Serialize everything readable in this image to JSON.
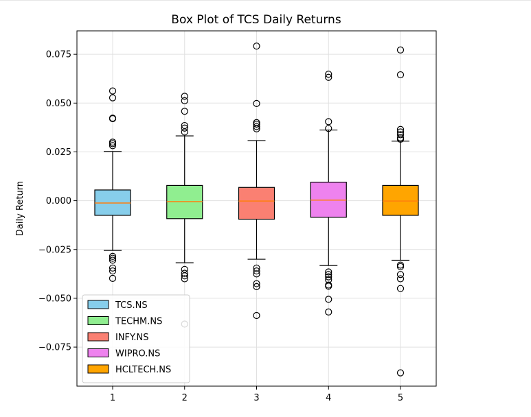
{
  "chart_data": {
    "type": "box",
    "title": "Box Plot of TCS Daily Returns",
    "xlabel": "",
    "ylabel": "Daily Return",
    "categories": [
      "1",
      "2",
      "3",
      "4",
      "5"
    ],
    "ylim": [
      -0.095,
      0.087
    ],
    "yticks": [
      0.075,
      0.05,
      0.025,
      0.0,
      -0.025,
      -0.05,
      -0.075
    ],
    "ytick_labels": [
      "0.075",
      "0.050",
      "0.025",
      "0.000",
      "−0.025",
      "−0.050",
      "−0.075"
    ],
    "grid": true,
    "legend_position": "lower-left",
    "series": [
      {
        "name": "TCS.NS",
        "color": "#87ceeb",
        "whisker_low": -0.0255,
        "q1": -0.0075,
        "median": -0.0012,
        "q3": 0.0055,
        "whisker_high": 0.0252,
        "outliers": [
          0.0562,
          0.0527,
          0.0423,
          0.042,
          0.03,
          0.0292,
          0.0282,
          -0.0285,
          -0.0295,
          -0.0305,
          -0.0345,
          -0.036,
          -0.0398
        ]
      },
      {
        "name": "TECHM.NS",
        "color": "#90ee90",
        "whisker_low": -0.0318,
        "q1": -0.0092,
        "median": -0.0005,
        "q3": 0.0078,
        "whisker_high": 0.0332,
        "outliers": [
          0.0535,
          0.0512,
          0.0458,
          0.0385,
          0.0372,
          0.0352,
          -0.0352,
          -0.0372,
          -0.0385,
          -0.04,
          -0.0632
        ]
      },
      {
        "name": "INFY.NS",
        "color": "#fa8072",
        "whisker_low": -0.03,
        "q1": -0.0095,
        "median": -0.0002,
        "q3": 0.0068,
        "whisker_high": 0.0308,
        "outliers": [
          0.0792,
          0.0498,
          0.04,
          0.0392,
          0.038,
          0.0368,
          -0.0345,
          -0.036,
          -0.0375,
          -0.0425,
          -0.044,
          -0.0588
        ]
      },
      {
        "name": "WIPRO.NS",
        "color": "#ee82ee",
        "whisker_low": -0.0332,
        "q1": -0.0085,
        "median": 0.0003,
        "q3": 0.0095,
        "whisker_high": 0.0362,
        "outliers": [
          0.0648,
          0.0632,
          0.0405,
          0.037,
          -0.0365,
          -0.0378,
          -0.039,
          -0.0405,
          -0.0432,
          -0.0438,
          -0.0505,
          -0.057
        ]
      },
      {
        "name": "HCLTECH.NS",
        "color": "#ffa500",
        "whisker_low": -0.0305,
        "q1": -0.0075,
        "median": -0.0002,
        "q3": 0.0078,
        "whisker_high": 0.0305,
        "outliers": [
          0.0772,
          0.0645,
          0.0365,
          0.0352,
          0.0338,
          0.0322,
          0.0315,
          -0.033,
          -0.0338,
          -0.0378,
          -0.04,
          -0.045,
          -0.0882
        ]
      }
    ]
  }
}
